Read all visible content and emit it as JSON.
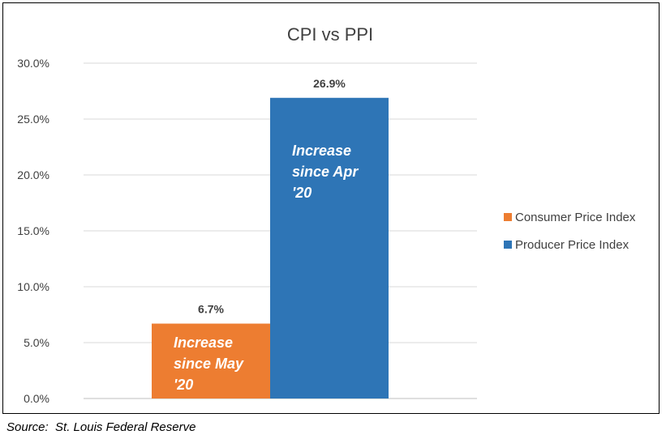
{
  "chart_data": {
    "type": "bar",
    "title": "CPI vs PPI",
    "xlabel": "",
    "ylabel": "",
    "ylim": [
      0,
      30
    ],
    "yticks": [
      "0.0%",
      "5.0%",
      "10.0%",
      "15.0%",
      "20.0%",
      "25.0%",
      "30.0%"
    ],
    "grid": "horizontal",
    "legend_position": "right",
    "series": [
      {
        "name": "Consumer Price Index",
        "value": 6.7,
        "data_label": "6.7%",
        "annotation": [
          "Increase",
          "since May",
          "'20"
        ],
        "color": "#ED7D31"
      },
      {
        "name": "Producer Price Index",
        "value": 26.9,
        "data_label": "26.9%",
        "annotation": [
          "Increase",
          "since Apr",
          "'20"
        ],
        "color": "#2E75B6"
      }
    ]
  },
  "source_note": "Source:  St. Louis Federal Reserve"
}
